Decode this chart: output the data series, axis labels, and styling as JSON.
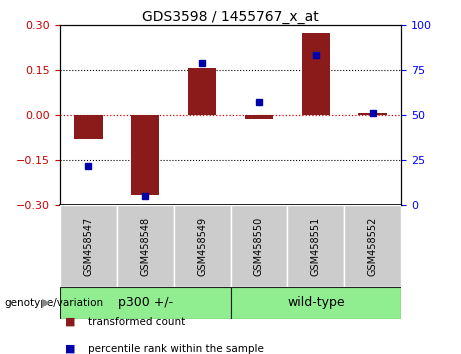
{
  "title": "GDS3598 / 1455767_x_at",
  "categories": [
    "GSM458547",
    "GSM458548",
    "GSM458549",
    "GSM458550",
    "GSM458551",
    "GSM458552"
  ],
  "red_values": [
    -0.08,
    -0.265,
    0.157,
    -0.012,
    0.272,
    0.008
  ],
  "blue_values": [
    22,
    5,
    79,
    57,
    83,
    51
  ],
  "ylim_left": [
    -0.3,
    0.3
  ],
  "ylim_right": [
    0,
    100
  ],
  "yticks_left": [
    -0.3,
    -0.15,
    0,
    0.15,
    0.3
  ],
  "yticks_right": [
    0,
    25,
    50,
    75,
    100
  ],
  "hlines_dotted": [
    0.15,
    -0.15
  ],
  "hline_zero_color": "#dd0000",
  "bar_color": "#8B1A1A",
  "dot_color": "#0000AA",
  "background_color": "#ffffff",
  "plot_bg_color": "#ffffff",
  "sample_box_color": "#cccccc",
  "group_ranges": [
    [
      0,
      2
    ],
    [
      3,
      5
    ]
  ],
  "group_labels": [
    "p300 +/-",
    "wild-type"
  ],
  "group_color": "#90EE90",
  "group_label": "genotype/variation",
  "legend_items": [
    {
      "label": "transformed count",
      "color": "#8B1A1A"
    },
    {
      "label": "percentile rank within the sample",
      "color": "#0000AA"
    }
  ]
}
